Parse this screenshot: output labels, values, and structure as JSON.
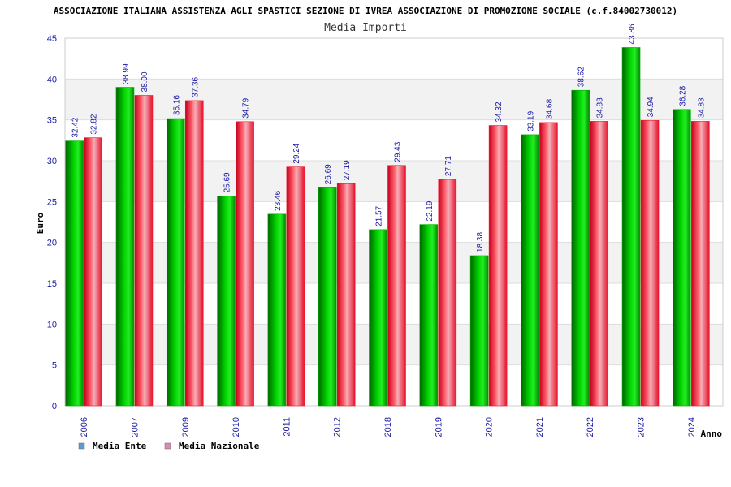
{
  "colors": {
    "ente": "#00b000",
    "nazionale": "#ee1c2e",
    "ente_legend": "#5b9bd5",
    "nazionale_legend": "#d98cb3",
    "tick_text": "#1a1aa6",
    "band": "#f2f2f2"
  },
  "chart_data": {
    "type": "bar",
    "title": "ASSOCIAZIONE ITALIANA ASSISTENZA AGLI SPASTICI SEZIONE DI IVREA ASSOCIAZIONE DI PROMOZIONE SOCIALE (c.f.84002730012)",
    "subtitle": "Media Importi",
    "xlabel": "Anno",
    "ylabel": "Euro",
    "ylim": [
      0,
      45
    ],
    "yticks": [
      0,
      5,
      10,
      15,
      20,
      25,
      30,
      35,
      40,
      45
    ],
    "grid": true,
    "legend_position": "bottom-left",
    "categories": [
      "2006",
      "2007",
      "2009",
      "2010",
      "2011",
      "2012",
      "2018",
      "2019",
      "2020",
      "2021",
      "2022",
      "2023",
      "2024"
    ],
    "series": [
      {
        "name": "Media Ente",
        "values": [
          32.42,
          38.99,
          35.16,
          25.69,
          23.46,
          26.69,
          21.57,
          22.19,
          18.38,
          33.19,
          38.62,
          43.86,
          36.28
        ],
        "labels": [
          "32.42",
          "38.99",
          "35.16",
          "25.69",
          "23.46",
          "26.69",
          "21.57",
          "22.19",
          "18.38",
          "33.19",
          "38.62",
          "43.86",
          "36.28"
        ]
      },
      {
        "name": "Media Nazionale",
        "values": [
          32.82,
          38.0,
          37.36,
          34.79,
          29.24,
          27.19,
          29.43,
          27.71,
          34.32,
          34.68,
          34.83,
          34.94,
          34.83
        ],
        "labels": [
          "32.82",
          "38.00",
          "37.36",
          "34.79",
          "29.24",
          "27.19",
          "29.43",
          "27.71",
          "34.32",
          "34.68",
          "34.83",
          "34.94",
          "34.83"
        ]
      }
    ]
  }
}
